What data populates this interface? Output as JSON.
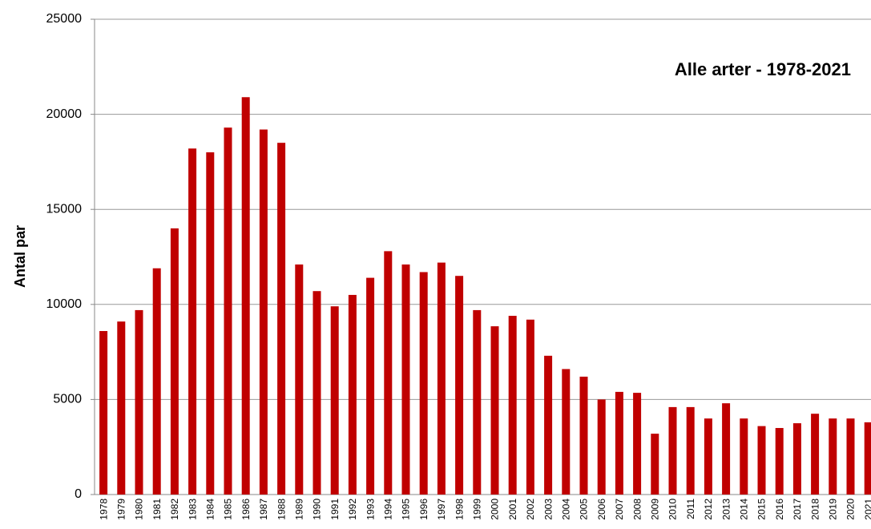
{
  "chart_data": {
    "type": "bar",
    "title": "Alle arter - 1978-2021",
    "y_label": "Antal par",
    "categories": [
      "1978",
      "1979",
      "1980",
      "1981",
      "1982",
      "1983",
      "1984",
      "1985",
      "1986",
      "1987",
      "1988",
      "1989",
      "1990",
      "1991",
      "1992",
      "1993",
      "1994",
      "1995",
      "1996",
      "1997",
      "1998",
      "1999",
      "2000",
      "2001",
      "2002",
      "2003",
      "2004",
      "2005",
      "2006",
      "2007",
      "2008",
      "2009",
      "2010",
      "2011",
      "2012",
      "2013",
      "2014",
      "2015",
      "2016",
      "2017",
      "2018",
      "2019",
      "2020",
      "2021"
    ],
    "values": [
      8600,
      9100,
      9700,
      11900,
      14000,
      18200,
      18000,
      19300,
      20900,
      19200,
      18500,
      12100,
      10700,
      9900,
      10500,
      11400,
      12800,
      12100,
      11700,
      12200,
      11500,
      9700,
      8850,
      9400,
      9200,
      7300,
      6600,
      6200,
      5000,
      5400,
      5350,
      3200,
      4600,
      4600,
      4000,
      4800,
      4000,
      3600,
      3500,
      3750,
      4250,
      4000,
      4000,
      3800
    ],
    "color": "#c00000",
    "ylim": [
      0,
      25000
    ],
    "yticks": [
      0,
      5000,
      10000,
      15000,
      20000,
      25000
    ],
    "grid": true
  }
}
